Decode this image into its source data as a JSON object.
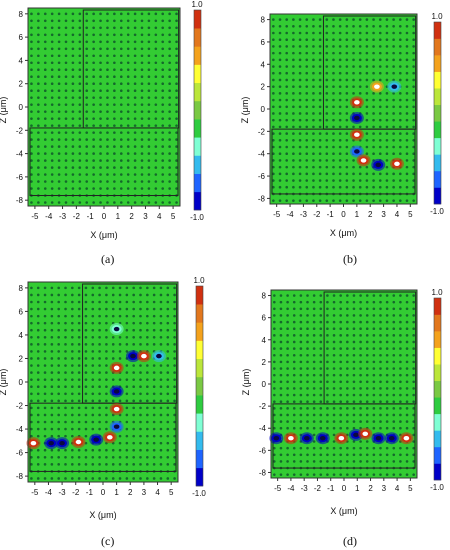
{
  "colorbar": {
    "max_label": "1.0",
    "min_label": "-1.0",
    "colors": [
      "#0000c8",
      "#1e64ff",
      "#33bbee",
      "#7fffd4",
      "#2ecc40",
      "#7ac943",
      "#bbe63a",
      "#ffff33",
      "#f4a21c",
      "#e2771d",
      "#d03010"
    ]
  },
  "field_background_color": "#33cc33",
  "hole_color": "#0b4a2a",
  "chart_data": [
    {
      "type": "heatmap",
      "panel_label": "(a)",
      "xlabel": "X (μm)",
      "ylabel": "Z (μm)",
      "x_ticks": [
        "-5",
        "-4",
        "-3",
        "-2",
        "-1",
        "0",
        "1",
        "2",
        "3",
        "4",
        "5"
      ],
      "y_ticks": [
        "8",
        "6",
        "4",
        "2",
        "0",
        "-2",
        "-4",
        "-6",
        "-8"
      ],
      "xlim": [
        -5.5,
        5.5
      ],
      "ylim": [
        -8.5,
        8.5
      ],
      "waveguide_region": "uniform field, no excitation",
      "hotspots": []
    },
    {
      "type": "heatmap",
      "panel_label": "(b)",
      "xlabel": "X (μm)",
      "ylabel": "Z (μm)",
      "x_ticks": [
        "-5",
        "-4",
        "-3",
        "-2",
        "-1",
        "0",
        "1",
        "2",
        "3",
        "4",
        "5"
      ],
      "y_ticks": [
        "8",
        "6",
        "4",
        "2",
        "0",
        "-2",
        "-4",
        "-6",
        "-8"
      ],
      "xlim": [
        -5.5,
        5.5
      ],
      "ylim": [
        -8.5,
        8.5
      ],
      "hotspots": [
        {
          "x": 1.0,
          "z": 0.6,
          "value": 1.0
        },
        {
          "x": 1.0,
          "z": -0.8,
          "value": -1.0
        },
        {
          "x": 1.0,
          "z": -2.3,
          "value": 1.0
        },
        {
          "x": 1.0,
          "z": -3.8,
          "value": -0.8
        },
        {
          "x": 1.5,
          "z": -4.6,
          "value": 0.9
        },
        {
          "x": 2.6,
          "z": -5.0,
          "value": -1.0
        },
        {
          "x": 4.0,
          "z": -4.9,
          "value": 1.0
        },
        {
          "x": 2.5,
          "z": 2.0,
          "value": 0.6
        },
        {
          "x": 3.8,
          "z": 2.0,
          "value": -0.5
        }
      ]
    },
    {
      "type": "heatmap",
      "panel_label": "(c)",
      "xlabel": "X (μm)",
      "ylabel": "Z (μm)",
      "x_ticks": [
        "-5",
        "-4",
        "-3",
        "-2",
        "-1",
        "0",
        "1",
        "2",
        "3",
        "4",
        "5"
      ],
      "y_ticks": [
        "8",
        "6",
        "4",
        "2",
        "0",
        "-2",
        "-4",
        "-6",
        "-8"
      ],
      "xlim": [
        -5.5,
        5.5
      ],
      "ylim": [
        -8.5,
        8.5
      ],
      "hotspots": [
        {
          "x": 1.0,
          "z": 4.5,
          "value": -0.4
        },
        {
          "x": 1.0,
          "z": 1.2,
          "value": 1.0
        },
        {
          "x": 1.0,
          "z": -0.8,
          "value": -1.0
        },
        {
          "x": 1.0,
          "z": -2.3,
          "value": 1.0
        },
        {
          "x": 1.0,
          "z": -3.8,
          "value": -0.8
        },
        {
          "x": 2.2,
          "z": 2.2,
          "value": -1.0
        },
        {
          "x": 3.0,
          "z": 2.2,
          "value": 1.0
        },
        {
          "x": 4.1,
          "z": 2.2,
          "value": -0.6
        },
        {
          "x": -5.1,
          "z": -5.2,
          "value": 1.0
        },
        {
          "x": -3.8,
          "z": -5.2,
          "value": -1.0
        },
        {
          "x": -3.0,
          "z": -5.2,
          "value": -1.0
        },
        {
          "x": -1.8,
          "z": -5.1,
          "value": 1.0
        },
        {
          "x": -0.5,
          "z": -4.9,
          "value": -1.0
        },
        {
          "x": 0.5,
          "z": -4.7,
          "value": 1.0
        }
      ]
    },
    {
      "type": "heatmap",
      "panel_label": "(d)",
      "xlabel": "X (μm)",
      "ylabel": "Z (μm)",
      "x_ticks": [
        "-5",
        "-4",
        "-3",
        "-2",
        "-1",
        "0",
        "1",
        "2",
        "3",
        "4",
        "5"
      ],
      "y_ticks": [
        "8",
        "6",
        "4",
        "2",
        "0",
        "-2",
        "-4",
        "-6",
        "-8"
      ],
      "xlim": [
        -5.5,
        5.5
      ],
      "ylim": [
        -8.5,
        8.5
      ],
      "hotspots": [
        {
          "x": -5.1,
          "z": -4.9,
          "value": -1.0
        },
        {
          "x": -4.0,
          "z": -4.9,
          "value": 1.0
        },
        {
          "x": -2.8,
          "z": -4.9,
          "value": -1.0
        },
        {
          "x": -1.6,
          "z": -4.9,
          "value": -1.0
        },
        {
          "x": -0.2,
          "z": -4.9,
          "value": 1.0
        },
        {
          "x": 0.9,
          "z": -4.6,
          "value": -1.0
        },
        {
          "x": 1.6,
          "z": -4.5,
          "value": 0.9
        },
        {
          "x": 2.6,
          "z": -4.9,
          "value": -1.0
        },
        {
          "x": 3.6,
          "z": -4.9,
          "value": -0.9
        },
        {
          "x": 4.7,
          "z": -4.9,
          "value": 1.0
        }
      ]
    }
  ]
}
